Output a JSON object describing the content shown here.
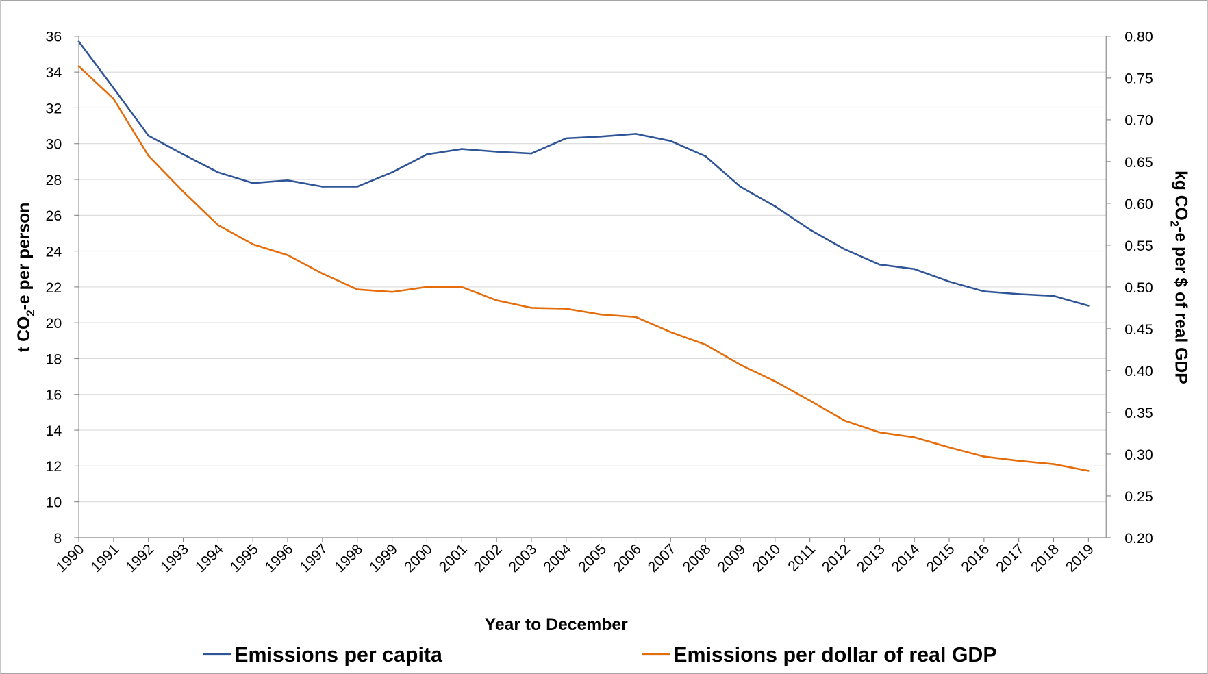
{
  "chart_data": {
    "type": "line",
    "title": "",
    "xlabel": "Year to December",
    "ylabel_left": {
      "prefix": "t CO",
      "sub": "2",
      "suffix": "-e per person"
    },
    "ylabel_right": {
      "prefix": "kg CO",
      "sub": "2",
      "suffix": "-e per $ of real GDP"
    },
    "ylim_left": [
      8,
      36
    ],
    "ylim_right": [
      0.2,
      0.8
    ],
    "yticks_left": [
      "8",
      "10",
      "12",
      "14",
      "16",
      "18",
      "20",
      "22",
      "24",
      "26",
      "28",
      "30",
      "32",
      "34",
      "36"
    ],
    "yticks_right": [
      "0.20",
      "0.25",
      "0.30",
      "0.35",
      "0.40",
      "0.45",
      "0.50",
      "0.55",
      "0.60",
      "0.65",
      "0.70",
      "0.75",
      "0.80"
    ],
    "grid": true,
    "legend_position": "bottom",
    "x": [
      "1990",
      "1991",
      "1992",
      "1993",
      "1994",
      "1995",
      "1996",
      "1997",
      "1998",
      "1999",
      "2000",
      "2001",
      "2002",
      "2003",
      "2004",
      "2005",
      "2006",
      "2007",
      "2008",
      "2009",
      "2010",
      "2011",
      "2012",
      "2013",
      "2014",
      "2015",
      "2016",
      "2017",
      "2018",
      "2019"
    ],
    "series": [
      {
        "name": "Emissions per capita",
        "axis": "left",
        "color": "#2f5597",
        "values": [
          35.7,
          33.1,
          30.45,
          29.4,
          28.4,
          27.8,
          27.95,
          27.6,
          27.6,
          28.4,
          29.4,
          29.7,
          29.55,
          29.45,
          30.3,
          30.4,
          30.55,
          30.15,
          29.3,
          27.6,
          26.5,
          25.2,
          24.1,
          23.25,
          23.0,
          22.3,
          21.75,
          21.6,
          21.5,
          20.95
        ]
      },
      {
        "name": "Emissions per dollar of real GDP",
        "axis": "right",
        "color": "#e46c0a",
        "values": [
          0.764,
          0.725,
          0.657,
          0.614,
          0.574,
          0.551,
          0.538,
          0.516,
          0.497,
          0.494,
          0.5,
          0.5,
          0.484,
          0.475,
          0.474,
          0.467,
          0.464,
          0.446,
          0.431,
          0.407,
          0.387,
          0.364,
          0.34,
          0.326,
          0.32,
          0.308,
          0.297,
          0.292,
          0.288,
          0.28
        ]
      }
    ]
  }
}
